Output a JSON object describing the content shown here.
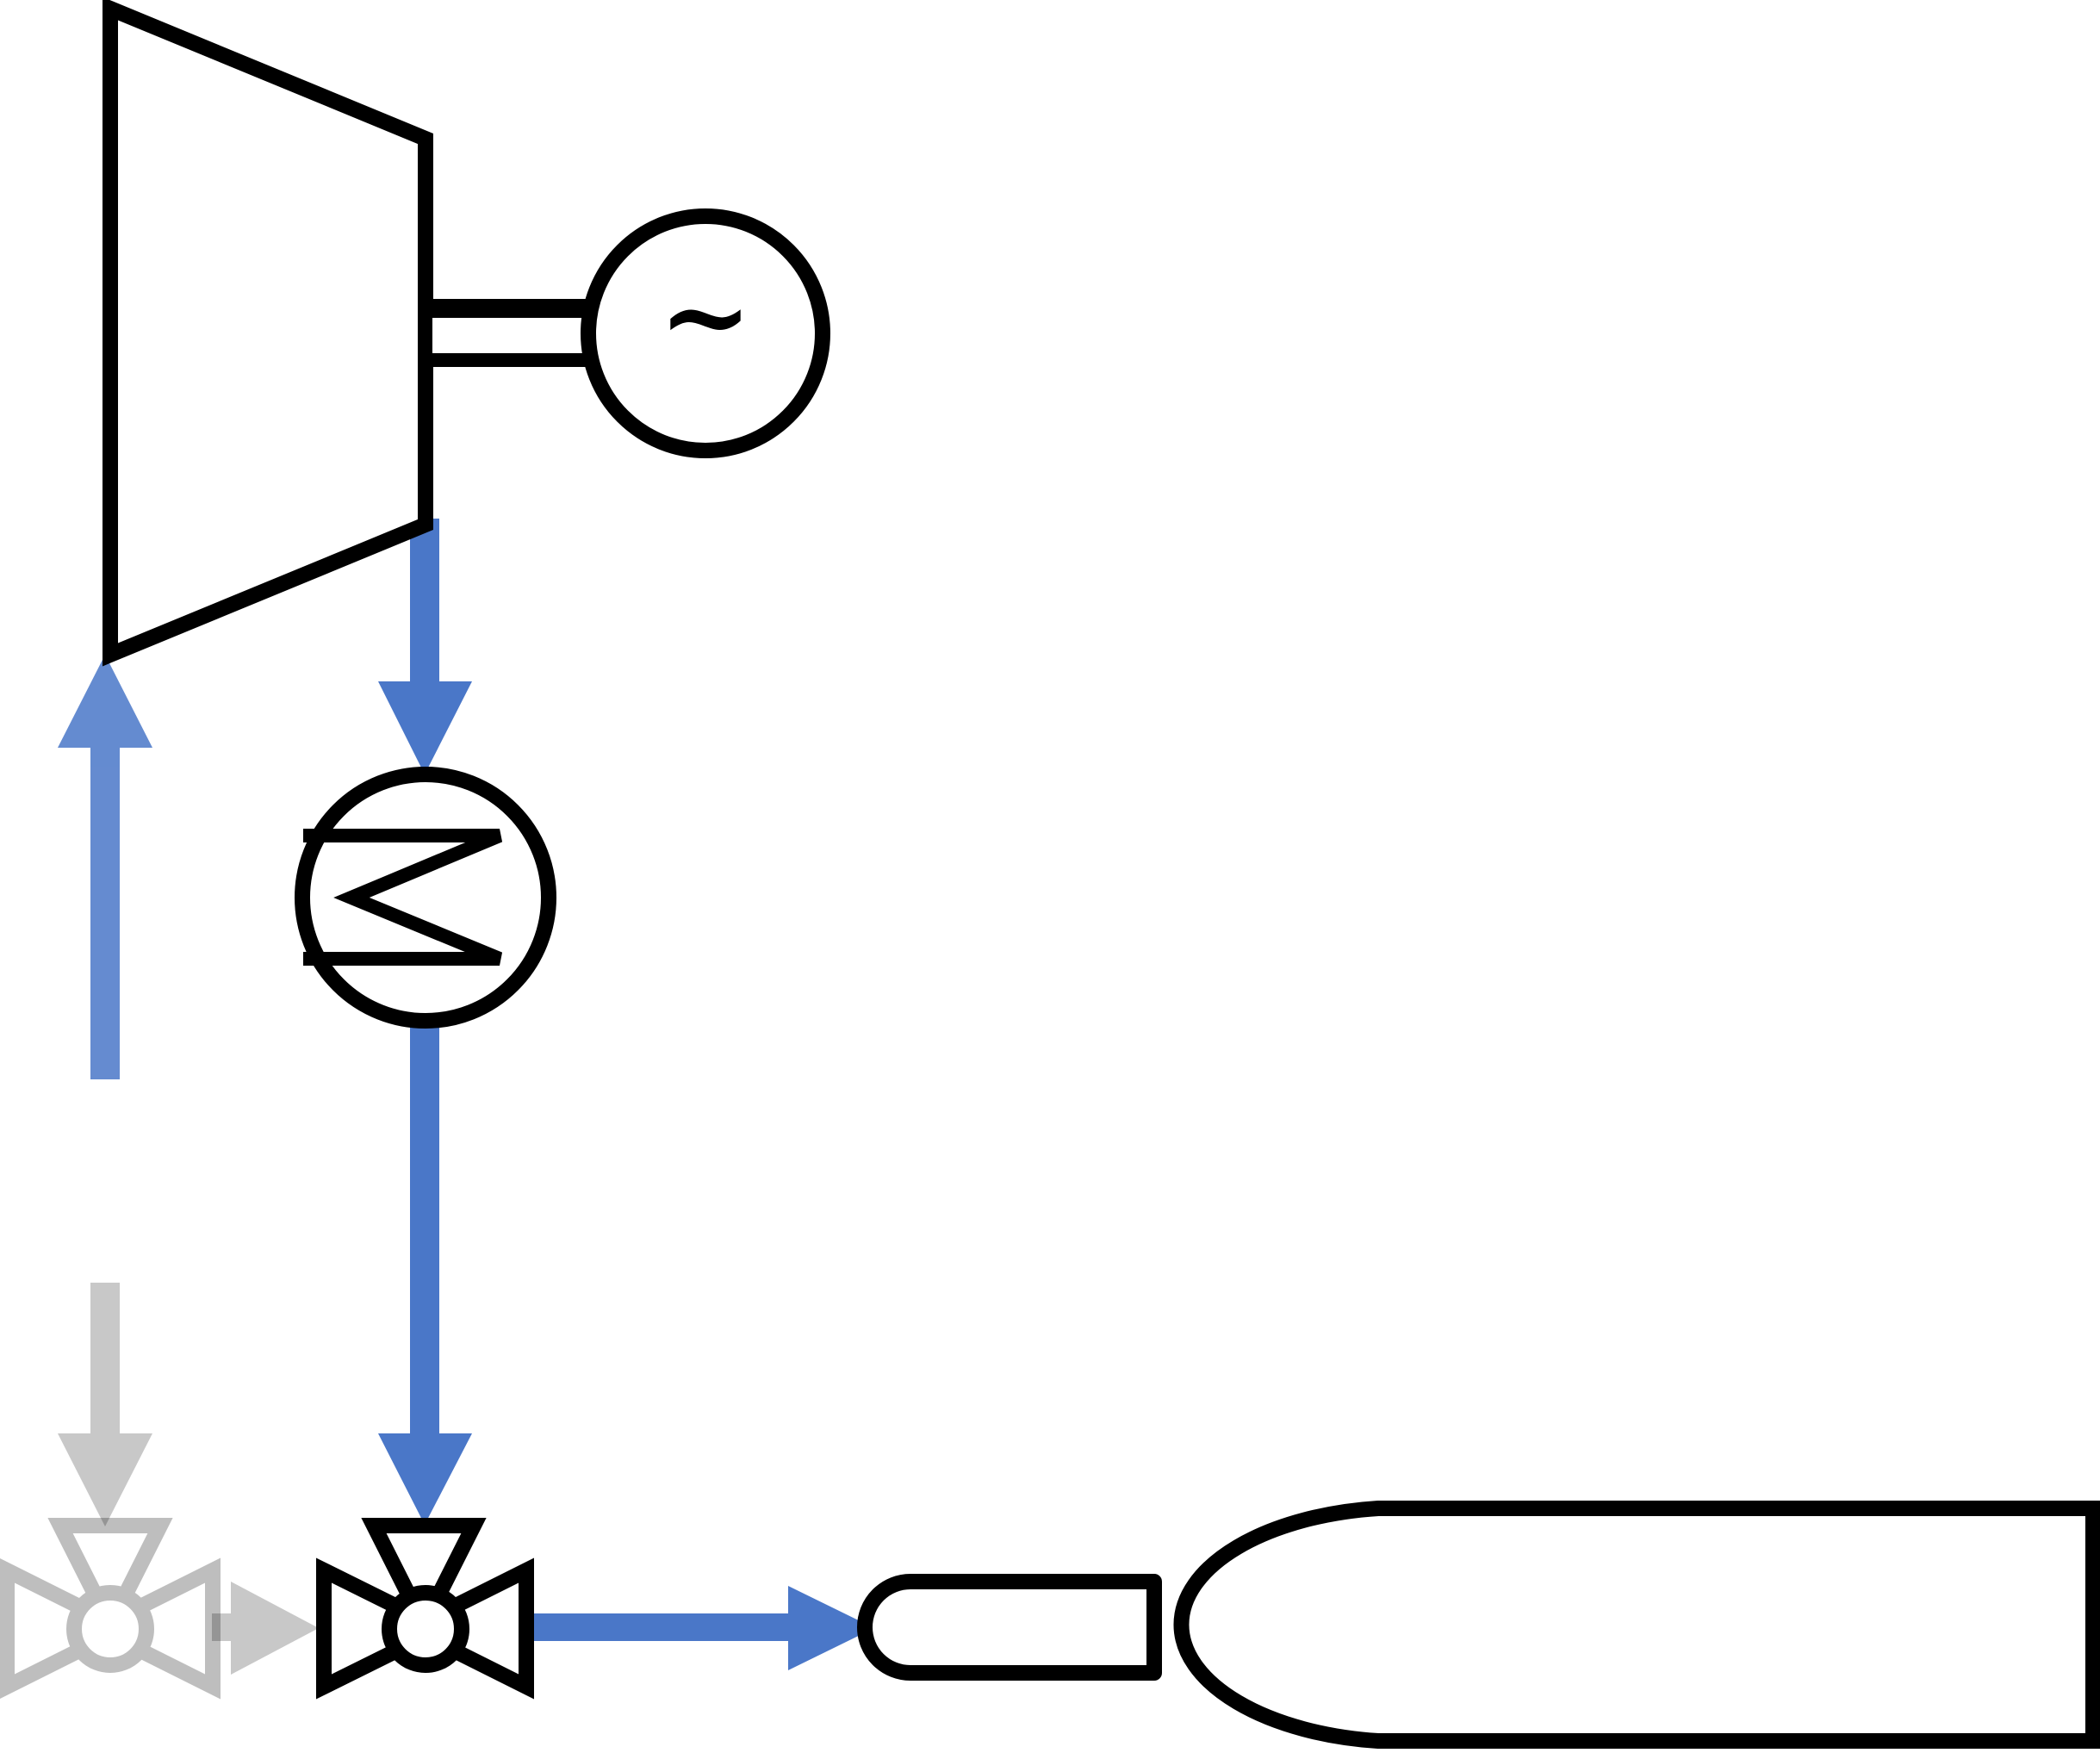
{
  "diagram": {
    "generator": {
      "symbol": "~"
    },
    "colors": {
      "line": "#000000",
      "flow_active": "#4a77c8",
      "flow_inactive": "#c8c8c8",
      "fill": "#ffffff"
    },
    "components": [
      {
        "id": "turbine",
        "icon": "turbine-icon",
        "state": "active"
      },
      {
        "id": "generator",
        "icon": "generator-icon",
        "state": "active"
      },
      {
        "id": "heat-exchanger",
        "icon": "heat-exchanger-icon",
        "state": "active"
      },
      {
        "id": "three-way-valve-active",
        "icon": "three-way-valve-icon",
        "state": "active"
      },
      {
        "id": "three-way-valve-inactive",
        "icon": "three-way-valve-icon",
        "state": "inactive"
      },
      {
        "id": "storage-tank",
        "icon": "horizontal-tank-icon",
        "state": "active"
      }
    ],
    "flows": [
      {
        "id": "turbine-to-heat-exchanger",
        "state": "active"
      },
      {
        "id": "heat-exchanger-to-valve",
        "state": "active"
      },
      {
        "id": "valve-to-tank",
        "state": "active"
      },
      {
        "id": "inlet-to-turbine",
        "state": "active"
      },
      {
        "id": "inlet-to-inactive-valve",
        "state": "inactive"
      },
      {
        "id": "inactive-valve-to-active-valve",
        "state": "inactive"
      }
    ]
  }
}
